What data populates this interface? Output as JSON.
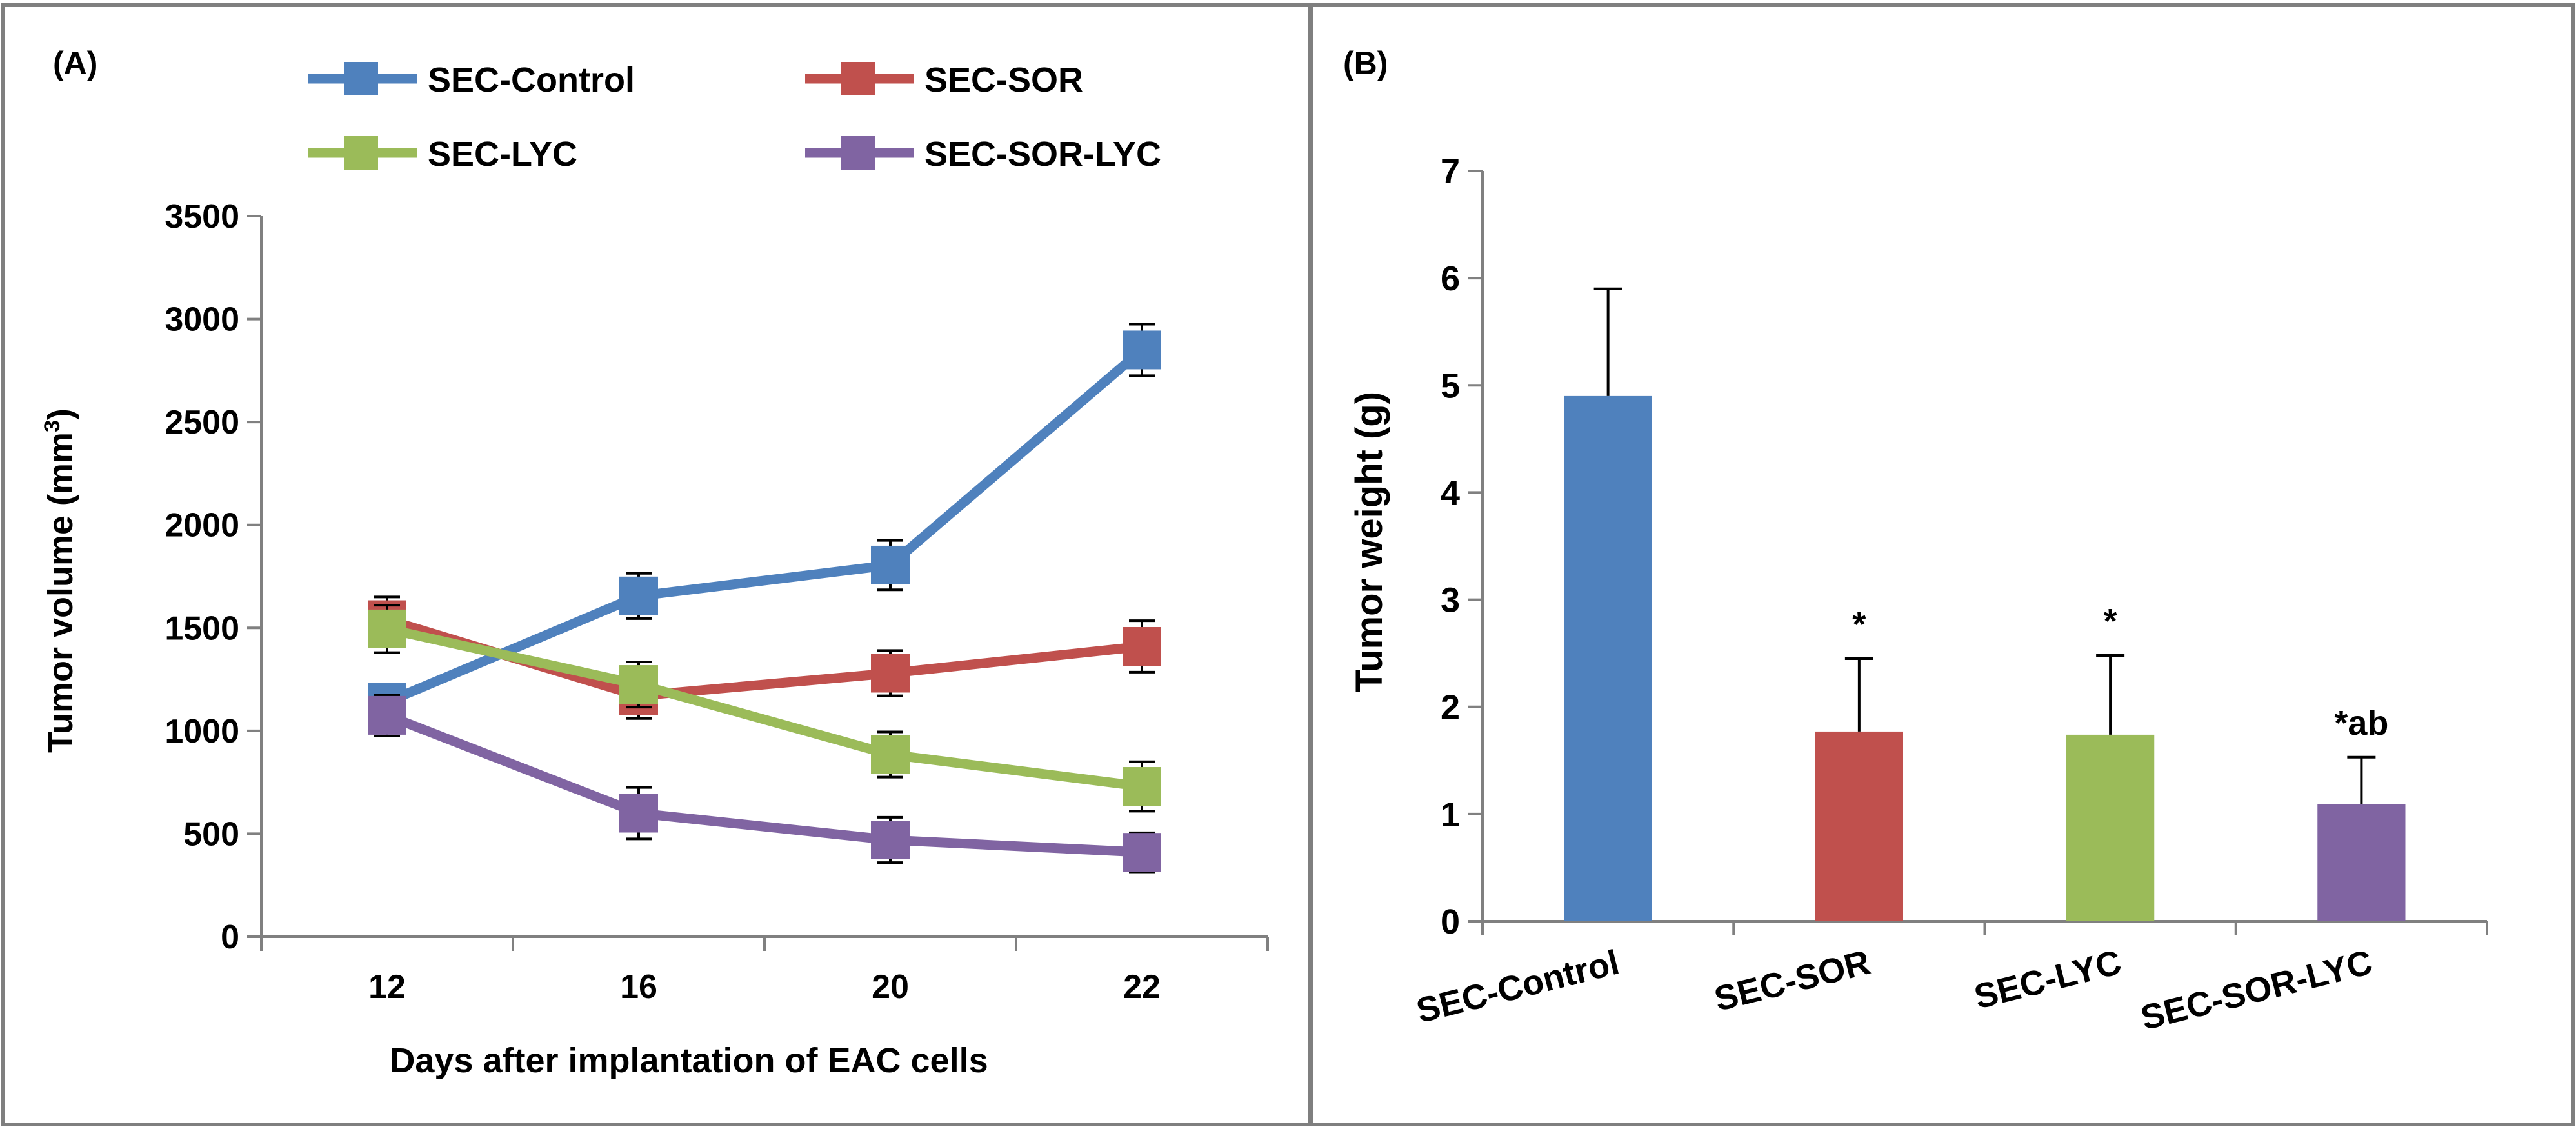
{
  "chart_data": [
    {
      "type": "line",
      "panel_label": "(A)",
      "xlabel": "Days after implantation of EAC cells",
      "ylabel": "Tumor volume (mm",
      "ylabel_sup": "3",
      "ylabel_close": ")",
      "categories": [
        "12",
        "16",
        "20",
        "22"
      ],
      "ylim": [
        0,
        3500
      ],
      "yticks": [
        0,
        500,
        1000,
        1500,
        2000,
        2500,
        3000,
        3500
      ],
      "legend_position": "top",
      "series": [
        {
          "name": "SEC-Control",
          "color": "#4F81BD",
          "values": [
            1140,
            1655,
            1805,
            2850
          ],
          "errors": [
            70,
            110,
            120,
            125
          ]
        },
        {
          "name": "SEC-SOR",
          "color": "#C0504D",
          "values": [
            1540,
            1170,
            1280,
            1410
          ],
          "errors": [
            110,
            110,
            110,
            125
          ]
        },
        {
          "name": "SEC-LYC",
          "color": "#9BBB59",
          "values": [
            1495,
            1225,
            885,
            730
          ],
          "errors": [
            115,
            110,
            110,
            120
          ]
        },
        {
          "name": "SEC-SOR-LYC",
          "color": "#8064A2",
          "values": [
            1075,
            600,
            470,
            410
          ],
          "errors": [
            100,
            125,
            110,
            95
          ]
        }
      ]
    },
    {
      "type": "bar",
      "panel_label": "(B)",
      "ylabel": "Tumor weight (g)",
      "ylim": [
        0,
        7
      ],
      "yticks": [
        0,
        1,
        2,
        3,
        4,
        5,
        6,
        7
      ],
      "categories": [
        "SEC-Control",
        "SEC-SOR",
        "SEC-LYC",
        "SEC-SOR-LYC"
      ],
      "values": [
        4.9,
        1.77,
        1.74,
        1.09
      ],
      "errors": [
        1.0,
        0.68,
        0.74,
        0.44
      ],
      "colors": [
        "#4F81BD",
        "#C0504D",
        "#9BBB59",
        "#8064A2"
      ],
      "annotations": [
        "",
        "*",
        "*",
        "*ab"
      ]
    }
  ]
}
